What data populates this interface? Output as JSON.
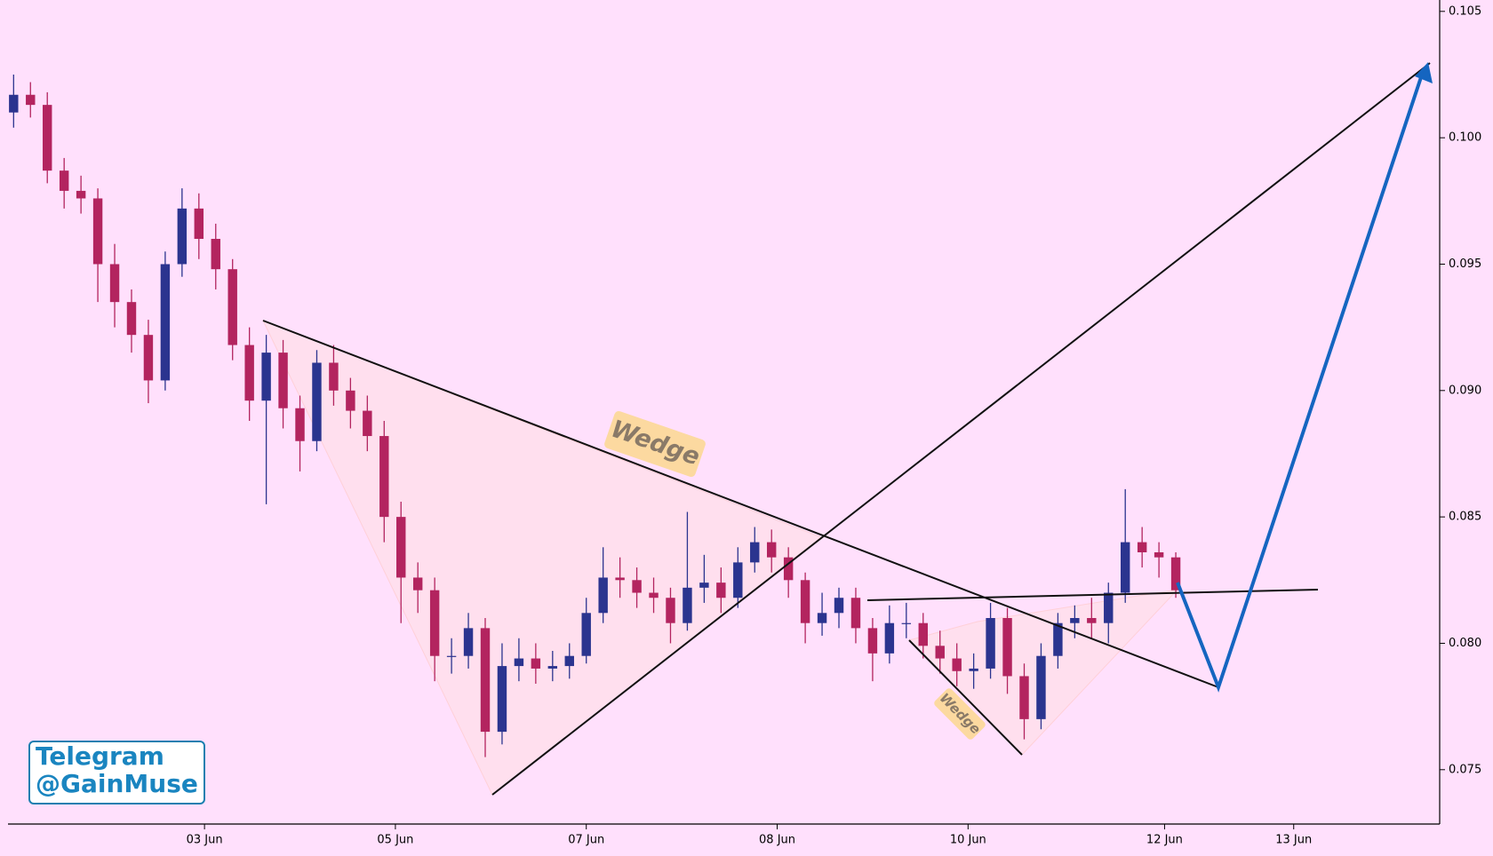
{
  "chart_data": {
    "type": "candlestick",
    "x": [
      1,
      4,
      7,
      10,
      13,
      16,
      19,
      22,
      25,
      28,
      31,
      34,
      37,
      40,
      43,
      46,
      49,
      52,
      55,
      58,
      61,
      64,
      67,
      70,
      73,
      76,
      79,
      82,
      85,
      88,
      91,
      94,
      97,
      100,
      103,
      106,
      109,
      112,
      115,
      118,
      121,
      124,
      127,
      130,
      133,
      136,
      139,
      142,
      145,
      148,
      151,
      154,
      157,
      160,
      163,
      166,
      169,
      172,
      175,
      178,
      181,
      184,
      187,
      190,
      193,
      196,
      199,
      202,
      205,
      208
    ],
    "open": [
      0.101,
      0.1017,
      0.1013,
      0.0987,
      0.0979,
      0.0976,
      0.095,
      0.0935,
      0.0922,
      0.0904,
      0.095,
      0.0972,
      0.096,
      0.0948,
      0.0918,
      0.0896,
      0.0915,
      0.0893,
      0.088,
      0.0911,
      0.09,
      0.0892,
      0.0882,
      0.085,
      0.0826,
      0.0821,
      0.0795,
      0.0795,
      0.0806,
      0.0765,
      0.0791,
      0.0794,
      0.079,
      0.0791,
      0.0795,
      0.0812,
      0.0826,
      0.0825,
      0.082,
      0.0818,
      0.0808,
      0.0822,
      0.0824,
      0.0818,
      0.0832,
      0.084,
      0.0834,
      0.0825,
      0.0808,
      0.0812,
      0.0818,
      0.0806,
      0.0796,
      0.0808,
      0.0808,
      0.0799,
      0.0794,
      0.0789,
      0.079,
      0.081,
      0.0787,
      0.077,
      0.0795,
      0.0808,
      0.081,
      0.0808,
      0.082,
      0.084,
      0.0836,
      0.0834
    ],
    "high": [
      0.1025,
      0.1022,
      0.1018,
      0.0992,
      0.0985,
      0.098,
      0.0958,
      0.094,
      0.0928,
      0.0955,
      0.098,
      0.0978,
      0.0966,
      0.0952,
      0.0925,
      0.0922,
      0.092,
      0.0898,
      0.0916,
      0.0918,
      0.0905,
      0.0898,
      0.0888,
      0.0856,
      0.0832,
      0.0826,
      0.0802,
      0.0812,
      0.081,
      0.08,
      0.0802,
      0.08,
      0.0797,
      0.08,
      0.0818,
      0.0838,
      0.0834,
      0.083,
      0.0826,
      0.0822,
      0.0852,
      0.0835,
      0.083,
      0.0838,
      0.0846,
      0.0845,
      0.0838,
      0.0828,
      0.082,
      0.0822,
      0.0822,
      0.081,
      0.0815,
      0.0816,
      0.0812,
      0.0805,
      0.08,
      0.0796,
      0.0816,
      0.0814,
      0.0792,
      0.08,
      0.0812,
      0.0815,
      0.0818,
      0.0824,
      0.0861,
      0.0846,
      0.084,
      0.0836
    ],
    "low": [
      0.1004,
      0.1008,
      0.0982,
      0.0972,
      0.097,
      0.0935,
      0.0925,
      0.0915,
      0.0895,
      0.09,
      0.0945,
      0.0952,
      0.094,
      0.0912,
      0.0888,
      0.0855,
      0.0885,
      0.0868,
      0.0876,
      0.0894,
      0.0885,
      0.0876,
      0.084,
      0.0808,
      0.0812,
      0.0785,
      0.0788,
      0.079,
      0.0755,
      0.076,
      0.0785,
      0.0784,
      0.0785,
      0.0786,
      0.0792,
      0.0808,
      0.0818,
      0.0814,
      0.0812,
      0.08,
      0.0805,
      0.0816,
      0.0812,
      0.0814,
      0.0828,
      0.0828,
      0.0818,
      0.08,
      0.0803,
      0.0806,
      0.08,
      0.0785,
      0.0792,
      0.0802,
      0.0794,
      0.0788,
      0.0783,
      0.0782,
      0.0786,
      0.078,
      0.0762,
      0.0766,
      0.079,
      0.0802,
      0.0802,
      0.08,
      0.0816,
      0.083,
      0.0826,
      0.0818
    ],
    "close": [
      0.1017,
      0.1013,
      0.0987,
      0.0979,
      0.0976,
      0.095,
      0.0935,
      0.0922,
      0.0904,
      0.095,
      0.0972,
      0.096,
      0.0948,
      0.0918,
      0.0896,
      0.0915,
      0.0893,
      0.088,
      0.0911,
      0.09,
      0.0892,
      0.0882,
      0.085,
      0.0826,
      0.0821,
      0.0795,
      0.0795,
      0.0806,
      0.0765,
      0.0791,
      0.0794,
      0.079,
      0.0791,
      0.0795,
      0.0812,
      0.0826,
      0.0825,
      0.082,
      0.0818,
      0.0808,
      0.0822,
      0.0824,
      0.0818,
      0.0832,
      0.084,
      0.0834,
      0.0825,
      0.0808,
      0.0812,
      0.0818,
      0.0806,
      0.0796,
      0.0808,
      0.0808,
      0.0799,
      0.0794,
      0.0789,
      0.079,
      0.081,
      0.0787,
      0.077,
      0.0795,
      0.0808,
      0.081,
      0.0808,
      0.082,
      0.084,
      0.0836,
      0.0834,
      0.0821
    ],
    "up_color": "#2b348f",
    "down_color": "#b3245f",
    "xlim": [
      0,
      255
    ],
    "xticks": [
      {
        "value": 35,
        "label": "03 Jun"
      },
      {
        "value": 69,
        "label": "05 Jun"
      },
      {
        "value": 103,
        "label": "07 Jun"
      },
      {
        "value": 137,
        "label": "08 Jun"
      },
      {
        "value": 171,
        "label": "10 Jun"
      },
      {
        "value": 206,
        "label": "12 Jun"
      },
      {
        "value": 229,
        "label": "13 Jun"
      }
    ],
    "ylim": [
      0.07285,
      0.10545
    ],
    "yticks": [
      0.075,
      {
        "value": 0.08,
        "label": "0.080"
      },
      0.085,
      {
        "value": 0.09,
        "label": "0.090"
      },
      0.095,
      {
        "value": 0.1,
        "label": "0.100"
      },
      0.105
    ],
    "annotations": [
      "Wedge",
      "Wedge"
    ],
    "watermark": [
      "Telegram",
      "@GainMuse"
    ]
  }
}
